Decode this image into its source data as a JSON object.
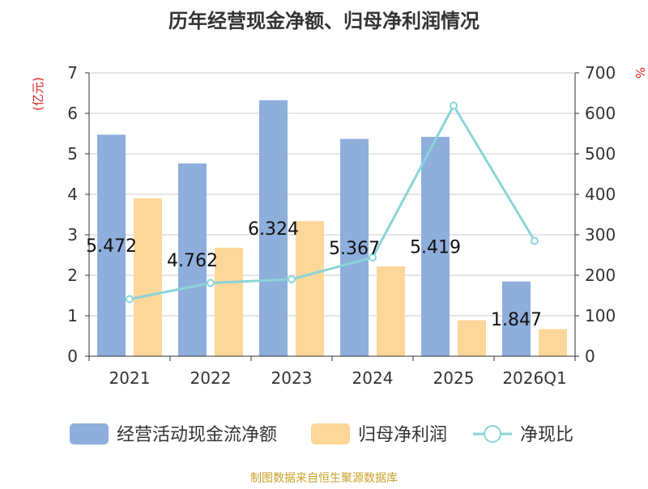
{
  "chart_data": {
    "type": "bar",
    "title": "历年经营现金净额、归母净利润情况",
    "categories": [
      "2021",
      "2022",
      "2023",
      "2024",
      "2025",
      "2026Q1"
    ],
    "left_unit": "(亿元)",
    "right_unit": "%",
    "ylim_left": [
      0,
      7
    ],
    "ylim_right": [
      0,
      700
    ],
    "yticks_left": [
      "0",
      "1",
      "2",
      "3",
      "4",
      "5",
      "6",
      "7"
    ],
    "yticks_right": [
      "0",
      "100",
      "200",
      "300",
      "400",
      "500",
      "600",
      "700"
    ],
    "grid": true,
    "legend_position": "bottom",
    "series": [
      {
        "name": "经营活动现金流净额",
        "type": "bar",
        "axis": "left",
        "color": "#8eaedb",
        "values": [
          5.472,
          4.762,
          6.324,
          5.367,
          5.419,
          1.847
        ],
        "labels": [
          "5.472",
          "4.762",
          "6.324",
          "5.367",
          "5.419",
          "1.847"
        ]
      },
      {
        "name": "归母净利润",
        "type": "bar",
        "axis": "left",
        "color": "#fdd699",
        "values": [
          3.9,
          2.68,
          3.34,
          2.22,
          0.89,
          0.67
        ]
      },
      {
        "name": "净现比",
        "type": "line",
        "axis": "right",
        "color": "#8ad4d8",
        "values": [
          141,
          181,
          190,
          244,
          619,
          285
        ]
      }
    ],
    "source": "制图数据来自恒生聚源数据库"
  }
}
